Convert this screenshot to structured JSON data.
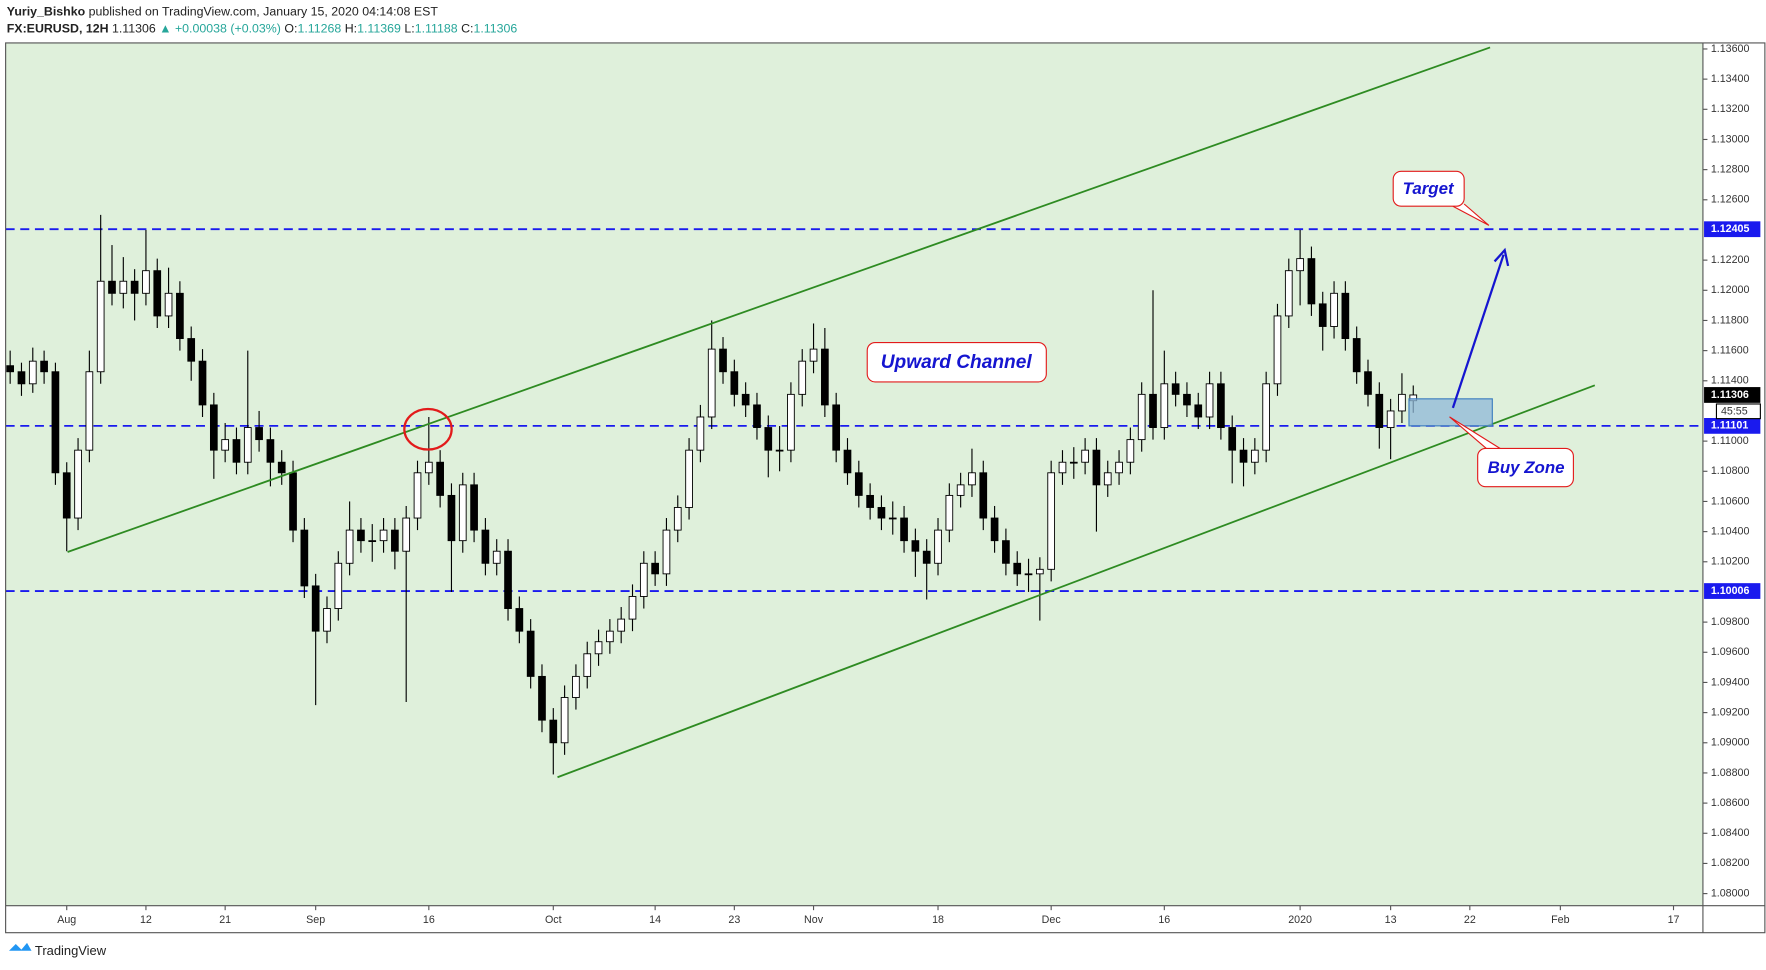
{
  "chart_data": {
    "type": "candlestick",
    "author": "Yuriy_Bishko",
    "published": "published on TradingView.com, January 15, 2020 04:14:08 EST",
    "symbol": "FX:EURUSD, 12H",
    "change": "▲ +0.00038 (+0.03%)",
    "ohlc_labels": [
      "O:",
      "H:",
      "L:",
      "C:"
    ],
    "annotations": [
      "Upward Channel",
      "Target",
      "Buy Zone"
    ],
    "countdown": "45:55",
    "branding": "TradingView",
    "up_color": "#ffffff",
    "down_color": "#000000",
    "background": "#dff0db",
    "level_color": "#1a1aee",
    "grid": false,
    "levels": [
      1.12405,
      1.11101,
      1.10006
    ],
    "ylim": [
      1.0792,
      1.1364
    ],
    "yticks": [
      {
        "value": 1.136,
        "label": "1.13600"
      },
      {
        "value": 1.134,
        "label": "1.13400"
      },
      {
        "value": 1.132,
        "label": "1.13200"
      },
      {
        "value": 1.13,
        "label": "1.13000"
      },
      {
        "value": 1.128,
        "label": "1.12800"
      },
      {
        "value": 1.126,
        "label": "1.12600"
      },
      {
        "value": 1.122,
        "label": "1.12200"
      },
      {
        "value": 1.12,
        "label": "1.12000"
      },
      {
        "value": 1.118,
        "label": "1.11800"
      },
      {
        "value": 1.116,
        "label": "1.11600"
      },
      {
        "value": 1.114,
        "label": "1.11400"
      },
      {
        "value": 1.11,
        "label": "1.11000"
      },
      {
        "value": 1.108,
        "label": "1.10800"
      },
      {
        "value": 1.106,
        "label": "1.10600"
      },
      {
        "value": 1.104,
        "label": "1.10400"
      },
      {
        "value": 1.102,
        "label": "1.10200"
      },
      {
        "value": 1.098,
        "label": "1.09800"
      },
      {
        "value": 1.096,
        "label": "1.09600"
      },
      {
        "value": 1.094,
        "label": "1.09400"
      },
      {
        "value": 1.092,
        "label": "1.09200"
      },
      {
        "value": 1.09,
        "label": "1.09000"
      },
      {
        "value": 1.088,
        "label": "1.08800"
      },
      {
        "value": 1.086,
        "label": "1.08600"
      },
      {
        "value": 1.084,
        "label": "1.08400"
      },
      {
        "value": 1.082,
        "label": "1.08200"
      },
      {
        "value": 1.08,
        "label": "1.08000"
      }
    ],
    "categories": [
      null,
      null,
      null,
      null,
      null,
      "Aug",
      null,
      null,
      null,
      null,
      null,
      null,
      "12",
      null,
      null,
      null,
      null,
      null,
      null,
      "21",
      null,
      null,
      null,
      null,
      null,
      null,
      null,
      "Sep",
      null,
      null,
      null,
      null,
      null,
      null,
      null,
      null,
      null,
      "16",
      null,
      null,
      null,
      null,
      null,
      null,
      null,
      null,
      null,
      null,
      "Oct",
      null,
      null,
      null,
      null,
      null,
      null,
      null,
      null,
      "14",
      null,
      null,
      null,
      null,
      null,
      null,
      "23",
      null,
      null,
      null,
      null,
      null,
      null,
      "Nov",
      null,
      null,
      null,
      null,
      null,
      null,
      null,
      null,
      null,
      null,
      "18",
      null,
      null,
      null,
      null,
      null,
      null,
      null,
      null,
      null,
      "Dec",
      null,
      null,
      null,
      null,
      null,
      null,
      null,
      null,
      null,
      "16",
      null,
      null,
      null,
      null,
      null,
      null,
      null,
      null,
      null,
      null,
      null,
      "2020",
      null,
      null,
      null,
      null,
      null,
      null,
      null,
      "13",
      null,
      null,
      null,
      null,
      null,
      null,
      "22",
      null,
      null,
      null,
      null,
      null,
      null,
      null,
      "Feb",
      null,
      null,
      null,
      null,
      null,
      null,
      null,
      null,
      null,
      "17",
      null
    ],
    "values": [
      [
        1.115,
        1.116,
        1.1138,
        1.1146
      ],
      [
        1.1146,
        1.1152,
        1.113,
        1.1138
      ],
      [
        1.1138,
        1.1162,
        1.1132,
        1.1153
      ],
      [
        1.1153,
        1.116,
        1.1138,
        1.1146
      ],
      [
        1.1146,
        1.1152,
        1.1071,
        1.1079
      ],
      [
        1.1079,
        1.1086,
        1.1027,
        1.1049
      ],
      [
        1.1049,
        1.1102,
        1.1041,
        1.1094
      ],
      [
        1.1094,
        1.116,
        1.1086,
        1.1146
      ],
      [
        1.1146,
        1.125,
        1.1138,
        1.1206
      ],
      [
        1.1206,
        1.123,
        1.119,
        1.1198
      ],
      [
        1.1198,
        1.1222,
        1.1188,
        1.1206
      ],
      [
        1.1206,
        1.1214,
        1.118,
        1.1198
      ],
      [
        1.1198,
        1.124,
        1.119,
        1.1213
      ],
      [
        1.1213,
        1.1221,
        1.1175,
        1.1183
      ],
      [
        1.1183,
        1.1215,
        1.1175,
        1.1198
      ],
      [
        1.1198,
        1.1206,
        1.116,
        1.1168
      ],
      [
        1.1168,
        1.1176,
        1.114,
        1.1153
      ],
      [
        1.1153,
        1.1161,
        1.1116,
        1.1124
      ],
      [
        1.1124,
        1.1132,
        1.1075,
        1.1094
      ],
      [
        1.1094,
        1.1112,
        1.1086,
        1.1101
      ],
      [
        1.1101,
        1.1109,
        1.1078,
        1.1086
      ],
      [
        1.1086,
        1.116,
        1.1078,
        1.1109
      ],
      [
        1.1109,
        1.112,
        1.1093,
        1.1101
      ],
      [
        1.1101,
        1.1109,
        1.107,
        1.1086
      ],
      [
        1.1086,
        1.1094,
        1.1071,
        1.1079
      ],
      [
        1.1079,
        1.1087,
        1.1033,
        1.1041
      ],
      [
        1.1041,
        1.1049,
        1.0996,
        1.1004
      ],
      [
        1.1004,
        1.1012,
        1.0925,
        1.0974
      ],
      [
        1.0974,
        1.0997,
        1.0966,
        1.0989
      ],
      [
        1.0989,
        1.1027,
        1.0981,
        1.1019
      ],
      [
        1.1019,
        1.106,
        1.1011,
        1.1041
      ],
      [
        1.1041,
        1.1049,
        1.1026,
        1.1034
      ],
      [
        1.1034,
        1.1045,
        1.102,
        1.1034
      ],
      [
        1.1034,
        1.1049,
        1.1026,
        1.1041
      ],
      [
        1.1041,
        1.1049,
        1.1015,
        1.1027
      ],
      [
        1.1027,
        1.1057,
        1.0927,
        1.1049
      ],
      [
        1.1049,
        1.1087,
        1.1041,
        1.1079
      ],
      [
        1.1079,
        1.1116,
        1.1071,
        1.1086
      ],
      [
        1.1086,
        1.1094,
        1.1056,
        1.1064
      ],
      [
        1.1064,
        1.1072,
        1.1,
        1.1034
      ],
      [
        1.1034,
        1.1079,
        1.1026,
        1.1071
      ],
      [
        1.1071,
        1.1079,
        1.1033,
        1.1041
      ],
      [
        1.1041,
        1.1049,
        1.1011,
        1.1019
      ],
      [
        1.1019,
        1.1035,
        1.1011,
        1.1027
      ],
      [
        1.1027,
        1.1035,
        1.0981,
        1.0989
      ],
      [
        1.0989,
        1.0997,
        1.0966,
        1.0974
      ],
      [
        1.0974,
        1.0982,
        1.0936,
        1.0944
      ],
      [
        1.0944,
        1.0952,
        1.0907,
        1.0915
      ],
      [
        1.0915,
        1.0923,
        1.0879,
        1.09
      ],
      [
        1.09,
        1.0938,
        1.0892,
        1.093
      ],
      [
        1.093,
        1.0952,
        1.0922,
        1.0944
      ],
      [
        1.0944,
        1.0967,
        1.0936,
        1.0959
      ],
      [
        1.0959,
        1.0975,
        1.0951,
        1.0967
      ],
      [
        1.0967,
        1.0982,
        1.0959,
        1.0974
      ],
      [
        1.0974,
        1.099,
        1.0966,
        1.0982
      ],
      [
        1.0982,
        1.1005,
        1.0974,
        1.0997
      ],
      [
        1.0997,
        1.1027,
        1.0989,
        1.1019
      ],
      [
        1.1019,
        1.1027,
        1.1004,
        1.1012
      ],
      [
        1.1012,
        1.1049,
        1.1004,
        1.1041
      ],
      [
        1.1041,
        1.1064,
        1.1033,
        1.1056
      ],
      [
        1.1056,
        1.1102,
        1.1048,
        1.1094
      ],
      [
        1.1094,
        1.1124,
        1.1086,
        1.1116
      ],
      [
        1.1116,
        1.118,
        1.1108,
        1.1161
      ],
      [
        1.1161,
        1.1169,
        1.1138,
        1.1146
      ],
      [
        1.1146,
        1.1154,
        1.1123,
        1.1131
      ],
      [
        1.1131,
        1.1139,
        1.1116,
        1.1124
      ],
      [
        1.1124,
        1.1132,
        1.1101,
        1.1109
      ],
      [
        1.1109,
        1.1117,
        1.1076,
        1.1094
      ],
      [
        1.1094,
        1.111,
        1.108,
        1.1094
      ],
      [
        1.1094,
        1.1139,
        1.1086,
        1.1131
      ],
      [
        1.1131,
        1.1161,
        1.1123,
        1.1153
      ],
      [
        1.1153,
        1.1178,
        1.1145,
        1.1161
      ],
      [
        1.1161,
        1.1175,
        1.1116,
        1.1124
      ],
      [
        1.1124,
        1.1132,
        1.1086,
        1.1094
      ],
      [
        1.1094,
        1.1102,
        1.1071,
        1.1079
      ],
      [
        1.1079,
        1.1087,
        1.1056,
        1.1064
      ],
      [
        1.1064,
        1.1072,
        1.1048,
        1.1056
      ],
      [
        1.1056,
        1.1064,
        1.1041,
        1.1049
      ],
      [
        1.1049,
        1.106,
        1.1038,
        1.1049
      ],
      [
        1.1049,
        1.1057,
        1.1026,
        1.1034
      ],
      [
        1.1034,
        1.1042,
        1.101,
        1.1027
      ],
      [
        1.1027,
        1.1035,
        1.0995,
        1.1019
      ],
      [
        1.1019,
        1.1049,
        1.1011,
        1.1041
      ],
      [
        1.1041,
        1.1072,
        1.1033,
        1.1064
      ],
      [
        1.1064,
        1.1079,
        1.1056,
        1.1071
      ],
      [
        1.1071,
        1.1095,
        1.1063,
        1.1079
      ],
      [
        1.1079,
        1.1087,
        1.1041,
        1.1049
      ],
      [
        1.1049,
        1.1057,
        1.1026,
        1.1034
      ],
      [
        1.1034,
        1.1042,
        1.1011,
        1.1019
      ],
      [
        1.1019,
        1.1027,
        1.1004,
        1.1012
      ],
      [
        1.1012,
        1.1022,
        1.1,
        1.1012
      ],
      [
        1.1012,
        1.1023,
        1.0981,
        1.1015
      ],
      [
        1.1015,
        1.1087,
        1.1007,
        1.1079
      ],
      [
        1.1079,
        1.1094,
        1.1071,
        1.1086
      ],
      [
        1.1086,
        1.1096,
        1.1075,
        1.1086
      ],
      [
        1.1086,
        1.1102,
        1.1078,
        1.1094
      ],
      [
        1.1094,
        1.1102,
        1.104,
        1.1071
      ],
      [
        1.1071,
        1.1087,
        1.1063,
        1.1079
      ],
      [
        1.1079,
        1.1094,
        1.1071,
        1.1086
      ],
      [
        1.1086,
        1.1109,
        1.1078,
        1.1101
      ],
      [
        1.1101,
        1.1139,
        1.1093,
        1.1131
      ],
      [
        1.1131,
        1.12,
        1.1101,
        1.1109
      ],
      [
        1.1109,
        1.116,
        1.1101,
        1.1138
      ],
      [
        1.1138,
        1.1146,
        1.1123,
        1.1131
      ],
      [
        1.1131,
        1.1139,
        1.1116,
        1.1124
      ],
      [
        1.1124,
        1.1132,
        1.1108,
        1.1116
      ],
      [
        1.1116,
        1.1146,
        1.1108,
        1.1138
      ],
      [
        1.1138,
        1.1146,
        1.1101,
        1.1109
      ],
      [
        1.1109,
        1.1117,
        1.1072,
        1.1094
      ],
      [
        1.1094,
        1.1102,
        1.107,
        1.1086
      ],
      [
        1.1086,
        1.1102,
        1.1078,
        1.1094
      ],
      [
        1.1094,
        1.1146,
        1.1086,
        1.1138
      ],
      [
        1.1138,
        1.1191,
        1.113,
        1.1183
      ],
      [
        1.1183,
        1.1221,
        1.1175,
        1.1213
      ],
      [
        1.1213,
        1.124,
        1.119,
        1.1221
      ],
      [
        1.1221,
        1.1229,
        1.1183,
        1.1191
      ],
      [
        1.1191,
        1.1199,
        1.116,
        1.1176
      ],
      [
        1.1176,
        1.1206,
        1.1168,
        1.1198
      ],
      [
        1.1198,
        1.1206,
        1.116,
        1.1168
      ],
      [
        1.1168,
        1.1176,
        1.1138,
        1.1146
      ],
      [
        1.1146,
        1.1154,
        1.1123,
        1.1131
      ],
      [
        1.1131,
        1.1139,
        1.1095,
        1.1109
      ],
      [
        1.1109,
        1.1128,
        1.1088,
        1.112
      ],
      [
        1.112,
        1.1145,
        1.1112,
        1.1131
      ],
      [
        1.11268,
        1.11369,
        1.11188,
        1.11306
      ],
      null,
      null,
      null,
      null,
      null,
      null,
      null,
      null,
      null,
      null,
      null,
      null,
      null,
      null,
      null,
      null,
      null,
      null,
      null,
      null,
      null,
      null,
      null,
      null
    ]
  }
}
